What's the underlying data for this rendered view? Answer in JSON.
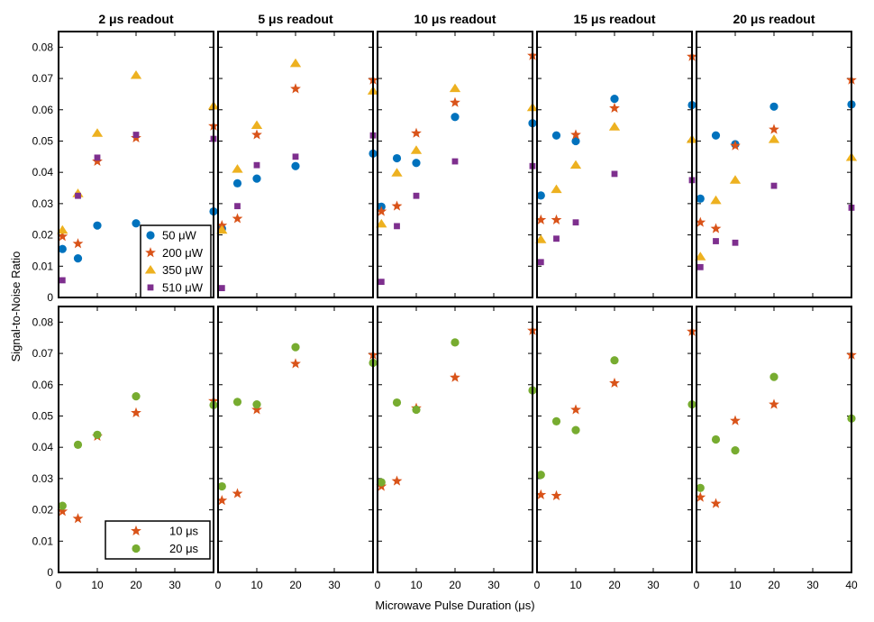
{
  "chart_data": {
    "type": "scatter",
    "layout": "2 rows x 5 columns of panels",
    "xlabel": "Microwave Pulse Duration (μs)",
    "ylabel": "Signal-to-Noise Ratio",
    "xlim": [
      0,
      40
    ],
    "ylim": [
      0,
      0.085
    ],
    "xticks": [
      0,
      10,
      20,
      30,
      40
    ],
    "yticks": [
      0,
      0.01,
      0.02,
      0.03,
      0.04,
      0.05,
      0.06,
      0.07,
      0.08
    ],
    "ytick_labels": [
      "0",
      "0.01",
      "0.02",
      "0.03",
      "0.04",
      "0.05",
      "0.06",
      "0.07",
      "0.08"
    ],
    "x": [
      1,
      5,
      10,
      20,
      40
    ],
    "columns": [
      "2 μs readout",
      "5 μs readout",
      "10 μs readout",
      "15 μs readout",
      "20 μs readout"
    ],
    "top_row": {
      "legend": [
        "50 μW",
        "200 μW",
        "350 μW",
        "510 μW"
      ],
      "series": [
        {
          "name": "50 μW",
          "marker": "circle",
          "color": "#0072BD",
          "values": [
            [
              0.0155,
              0.0125,
              0.023,
              0.0237,
              0.0275
            ],
            [
              0.022,
              0.0365,
              0.038,
              0.042,
              0.046
            ],
            [
              0.029,
              0.0445,
              0.043,
              0.0577,
              0.0557
            ],
            [
              0.0326,
              0.0518,
              0.05,
              0.0635,
              0.0615
            ],
            [
              0.0316,
              0.0518,
              0.049,
              0.061,
              0.0617
            ]
          ]
        },
        {
          "name": "200 μW",
          "marker": "star",
          "color": "#D95319",
          "values": [
            [
              0.0195,
              0.0172,
              0.0435,
              0.051,
              0.0548
            ],
            [
              0.023,
              0.0252,
              0.052,
              0.0667,
              0.0695
            ],
            [
              0.0275,
              0.0292,
              0.0525,
              0.0623,
              0.0773
            ],
            [
              0.0248,
              0.0248,
              0.052,
              0.0605,
              0.077
            ],
            [
              0.024,
              0.022,
              0.0485,
              0.0537,
              0.0695
            ]
          ]
        },
        {
          "name": "350 μW",
          "marker": "triangle",
          "color": "#EDB120",
          "values": [
            [
              0.0215,
              0.0332,
              0.0525,
              0.071,
              0.0612
            ],
            [
              0.0215,
              0.041,
              0.055,
              0.0748,
              0.066
            ],
            [
              0.0235,
              0.0398,
              0.047,
              0.0668,
              0.0607
            ],
            [
              0.0185,
              0.0345,
              0.0423,
              0.0545,
              0.0505
            ],
            [
              0.013,
              0.031,
              0.0375,
              0.0505,
              0.0448
            ]
          ]
        },
        {
          "name": "510 μW",
          "marker": "square",
          "color": "#7E2F8E",
          "values": [
            [
              0.0055,
              0.0325,
              0.0447,
              0.052,
              0.0507
            ],
            [
              0.003,
              0.0292,
              0.0423,
              0.045,
              0.0518
            ],
            [
              0.005,
              0.0228,
              0.0325,
              0.0435,
              0.042
            ],
            [
              0.0113,
              0.0188,
              0.024,
              0.0395,
              0.0375
            ],
            [
              0.0097,
              0.018,
              0.0175,
              0.0357,
              0.0287
            ]
          ]
        }
      ]
    },
    "bottom_row": {
      "legend": [
        "10 μs",
        "20 μs"
      ],
      "series": [
        {
          "name": "10 μs",
          "marker": "star",
          "color": "#D95319",
          "values": [
            [
              0.0195,
              0.0172,
              0.0435,
              0.051,
              0.0548
            ],
            [
              0.023,
              0.0252,
              0.052,
              0.0667,
              0.0695
            ],
            [
              0.0275,
              0.0292,
              0.0525,
              0.0623,
              0.0773
            ],
            [
              0.0248,
              0.0245,
              0.052,
              0.0605,
              0.077
            ],
            [
              0.024,
              0.022,
              0.0485,
              0.0537,
              0.0695
            ]
          ]
        },
        {
          "name": "20 μs",
          "marker": "circle",
          "color": "#77AC30",
          "values": [
            [
              0.0213,
              0.0408,
              0.044,
              0.0563,
              0.0535
            ],
            [
              0.0275,
              0.0545,
              0.0537,
              0.072,
              0.067
            ],
            [
              0.0288,
              0.0543,
              0.052,
              0.0735,
              0.0582
            ],
            [
              0.0312,
              0.0483,
              0.0455,
              0.0678,
              0.0537
            ],
            [
              0.027,
              0.0425,
              0.039,
              0.0625,
              0.0492
            ]
          ]
        }
      ]
    }
  }
}
